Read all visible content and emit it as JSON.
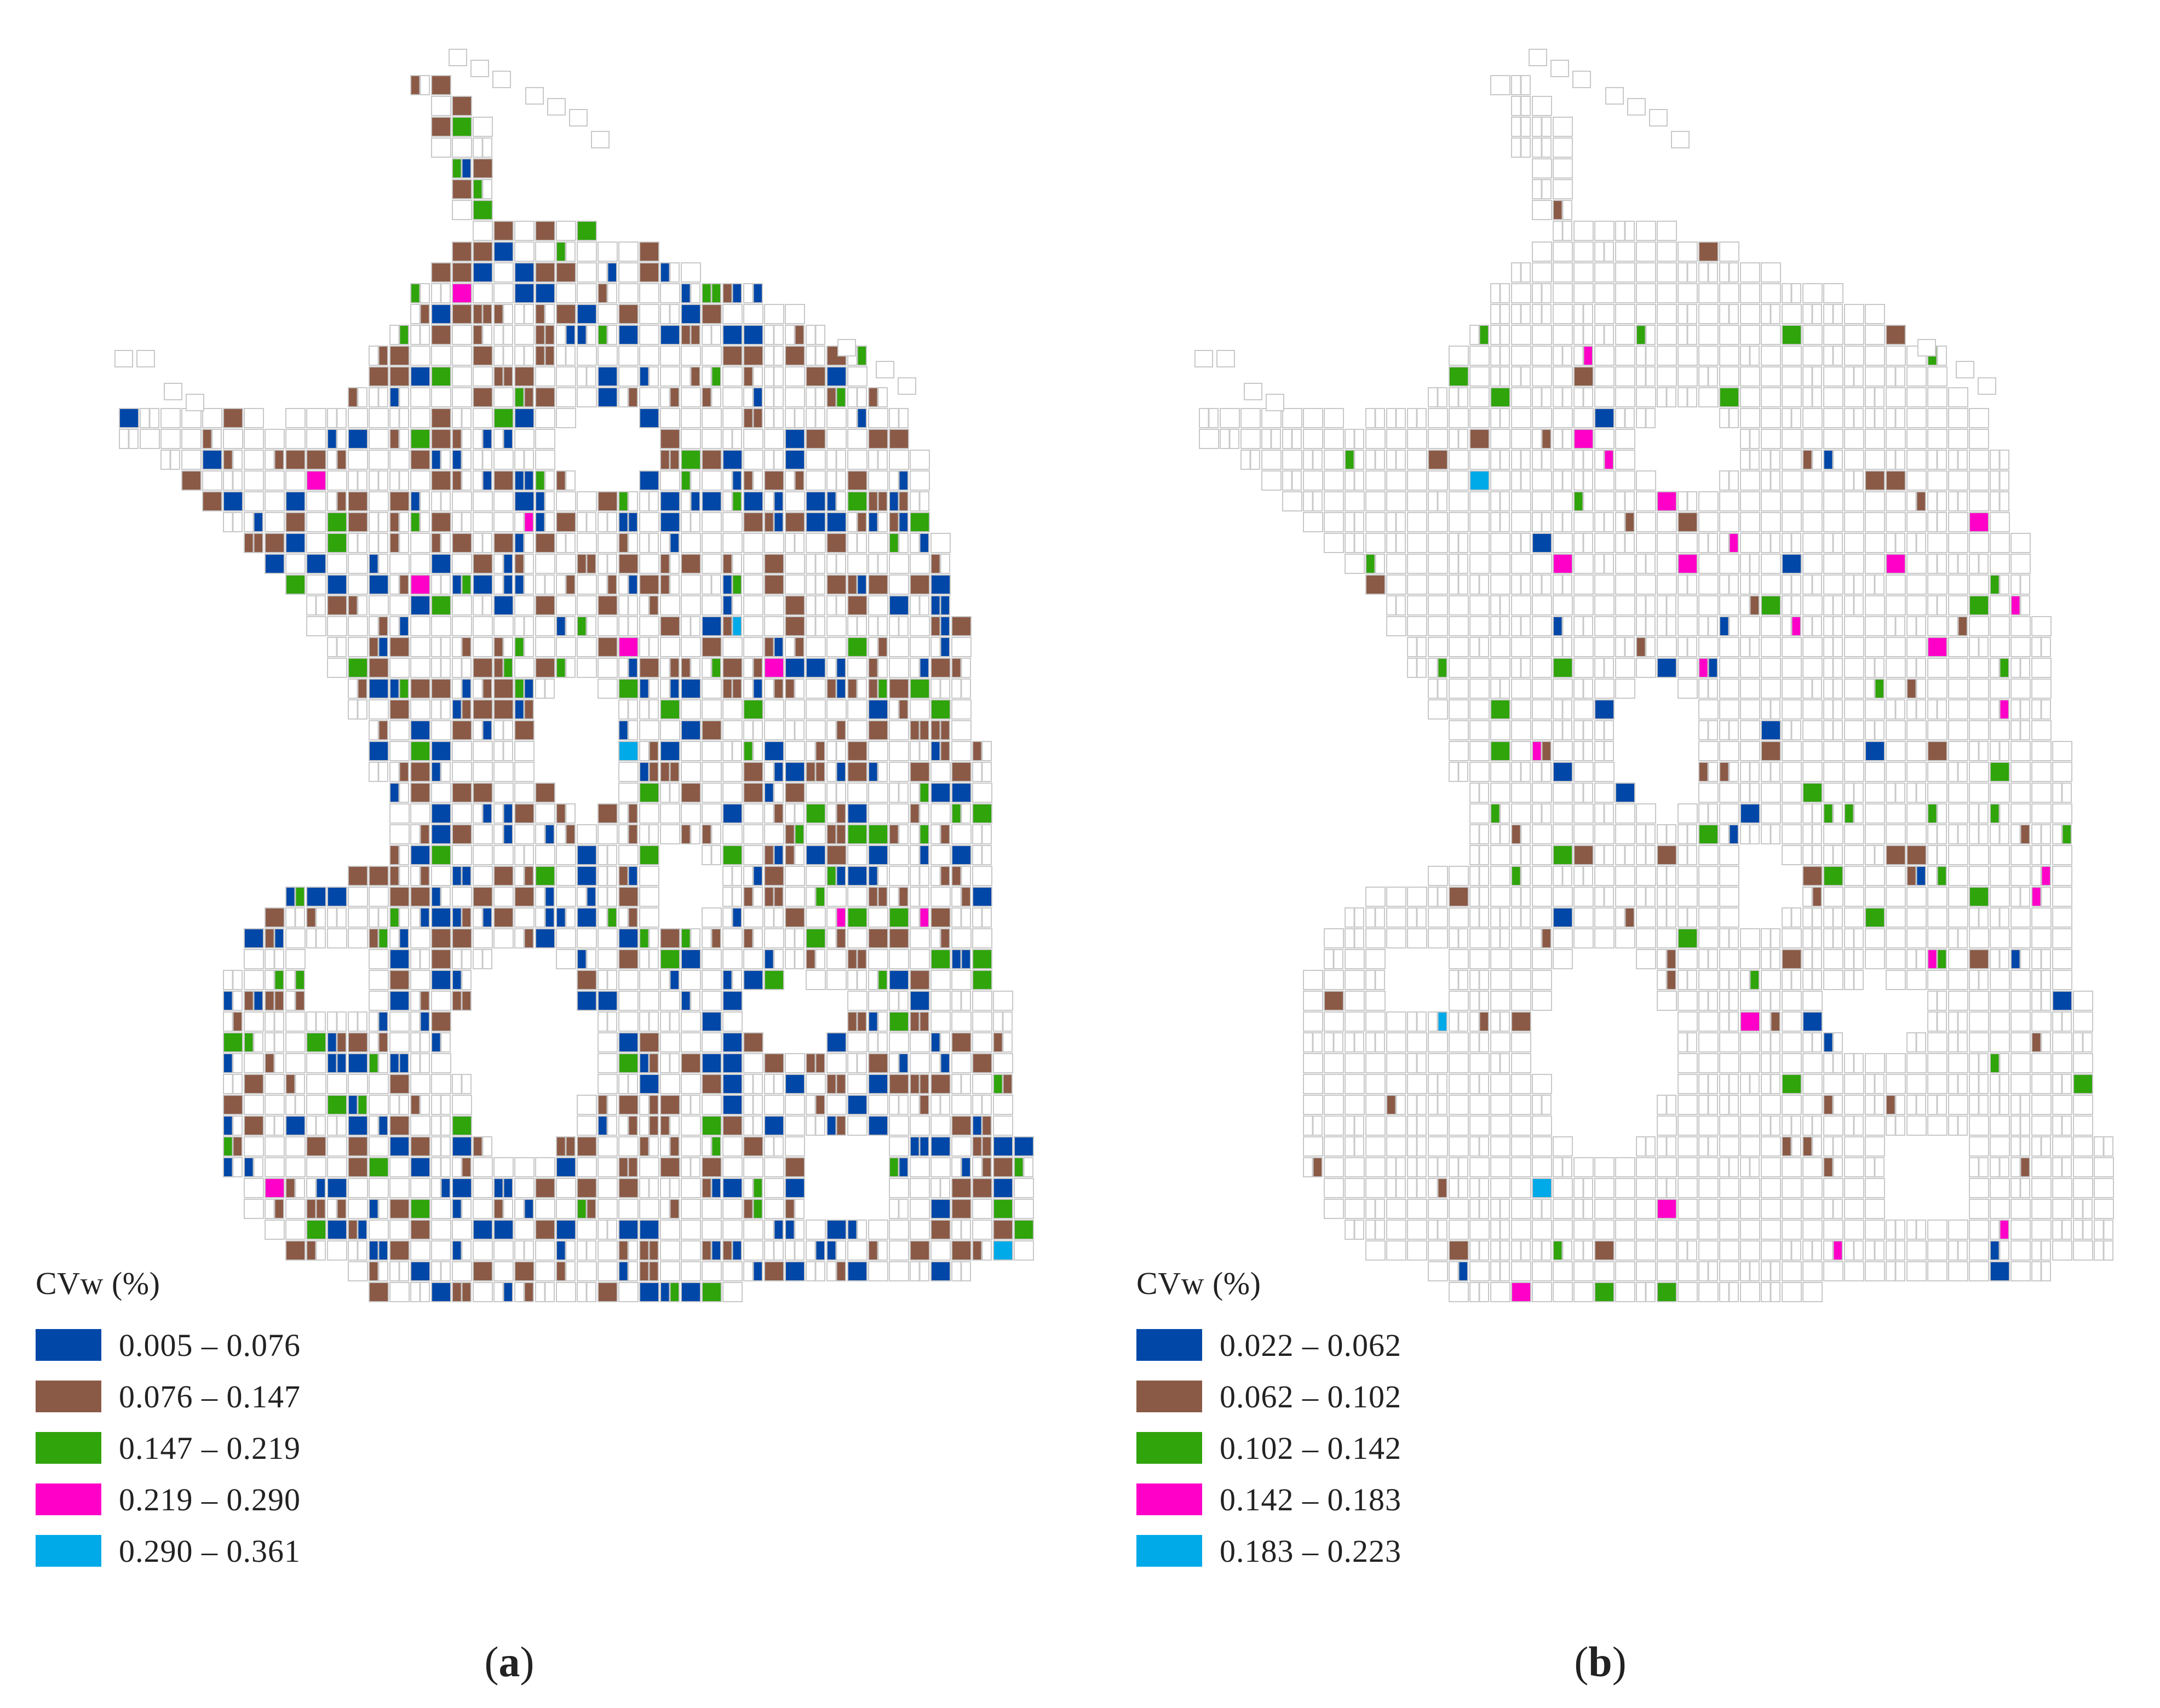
{
  "figure": {
    "panels": [
      {
        "id": "a",
        "label_open": "(",
        "label_letter": "a",
        "label_close": ")",
        "legend": {
          "title": "CVw (%)",
          "classes": [
            {
              "range": "0.005 – 0.076",
              "color": "#0047a8"
            },
            {
              "range": "0.076 – 0.147",
              "color": "#8b5a46"
            },
            {
              "range": "0.147 – 0.219",
              "color": "#2fa40b"
            },
            {
              "range": "0.219 – 0.290",
              "color": "#ff00c8"
            },
            {
              "range": "0.290 – 0.361",
              "color": "#00a9e8"
            }
          ]
        },
        "class_weights": [
          0.36,
          0.49,
          0.12,
          0.025,
          0.005
        ],
        "fill_fraction": 0.42
      },
      {
        "id": "b",
        "label_open": "(",
        "label_letter": "b",
        "label_close": ")",
        "legend": {
          "title": "CVw (%)",
          "classes": [
            {
              "range": "0.022 – 0.062",
              "color": "#0047a8"
            },
            {
              "range": "0.062 – 0.102",
              "color": "#8b5a46"
            },
            {
              "range": "0.102 – 0.142",
              "color": "#2fa40b"
            },
            {
              "range": "0.142 – 0.183",
              "color": "#ff00c8"
            },
            {
              "range": "0.183 – 0.223",
              "color": "#00a9e8"
            }
          ]
        },
        "class_weights": [
          0.18,
          0.36,
          0.26,
          0.18,
          0.02
        ],
        "fill_fraction": 0.075
      }
    ],
    "outline_color": "#c8c8c8"
  }
}
